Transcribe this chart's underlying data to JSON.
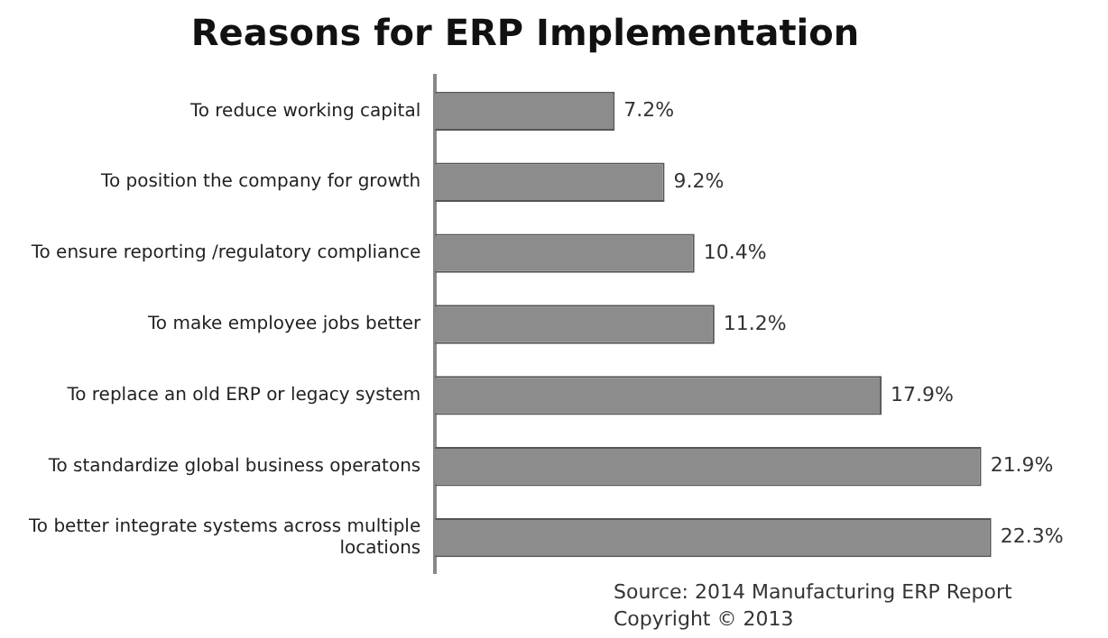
{
  "chart_data": {
    "type": "bar",
    "orientation": "horizontal",
    "title": "Reasons for ERP Implementation",
    "categories": [
      "To reduce working capital",
      "To position the company for growth",
      "To ensure reporting /regulatory compliance",
      "To make employee jobs better",
      "To replace an old ERP or legacy system",
      "To standardize global business operatons",
      "To better integrate systems across multiple locations"
    ],
    "values": [
      7.2,
      9.2,
      10.4,
      11.2,
      17.9,
      21.9,
      22.3
    ],
    "value_labels": [
      "7.2%",
      "9.2%",
      "10.4%",
      "11.2%",
      "17.9%",
      "21.9%",
      "22.3%"
    ],
    "color": "#8c8c8c",
    "grid": false,
    "annotations": [
      "Source: 2014 Manufacturing ERP Report",
      "Copyright © 2013"
    ]
  }
}
